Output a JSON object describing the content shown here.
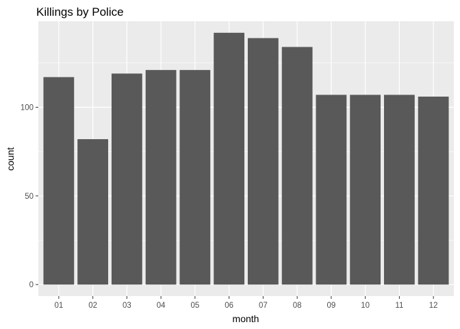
{
  "chart_data": {
    "type": "bar",
    "title": "Killings by Police",
    "xlabel": "month",
    "ylabel": "count",
    "categories": [
      "01",
      "02",
      "03",
      "04",
      "05",
      "06",
      "07",
      "08",
      "09",
      "10",
      "11",
      "12"
    ],
    "values": [
      117,
      82,
      119,
      121,
      121,
      142,
      139,
      134,
      107,
      107,
      107,
      106
    ],
    "ylim": [
      -6.5,
      148.5
    ],
    "yticks": [
      0,
      50,
      100
    ],
    "grid": true,
    "colors": {
      "bar": "#595959",
      "panel": "#ebebeb",
      "grid_major": "#ffffff",
      "tick_label": "#4d4d4d",
      "tick_mark": "#333333"
    }
  }
}
